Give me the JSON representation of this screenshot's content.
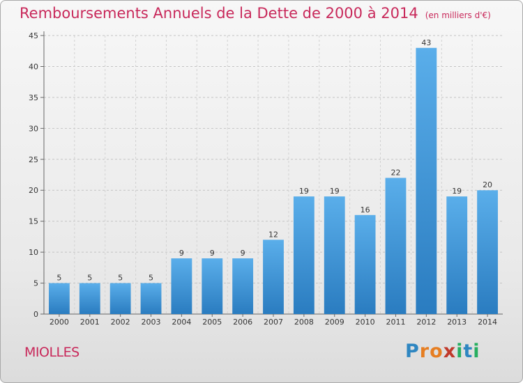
{
  "header": {
    "title": "Remboursements Annuels de la Dette de 2000 à 2014",
    "unit": "(en milliers d'€)"
  },
  "commune": "MIOLLES",
  "logo": {
    "text": "Proxiti",
    "letters": [
      {
        "ch": "P",
        "color": "#2e86c1"
      },
      {
        "ch": "r",
        "color": "#e67e22"
      },
      {
        "ch": "o",
        "color": "#e67e22"
      },
      {
        "ch": "x",
        "color": "#c0392b"
      },
      {
        "ch": "i",
        "color": "#27ae60"
      },
      {
        "ch": "t",
        "color": "#2e86c1"
      },
      {
        "ch": "i",
        "color": "#27ae60"
      }
    ]
  },
  "chart_data": {
    "type": "bar",
    "title": "Remboursements Annuels de la Dette de 2000 à 2014",
    "subtitle": "(en milliers d'€)",
    "categories": [
      "2000",
      "2001",
      "2002",
      "2003",
      "2004",
      "2005",
      "2006",
      "2007",
      "2008",
      "2009",
      "2010",
      "2011",
      "2012",
      "2013",
      "2014"
    ],
    "values": [
      5,
      5,
      5,
      5,
      9,
      9,
      9,
      12,
      19,
      19,
      16,
      22,
      43,
      19,
      20
    ],
    "ylim": [
      0,
      45
    ],
    "yticks": [
      0,
      5,
      10,
      15,
      20,
      25,
      30,
      35,
      40,
      45
    ],
    "grid": true,
    "bar_color": "#3d8fd6"
  }
}
